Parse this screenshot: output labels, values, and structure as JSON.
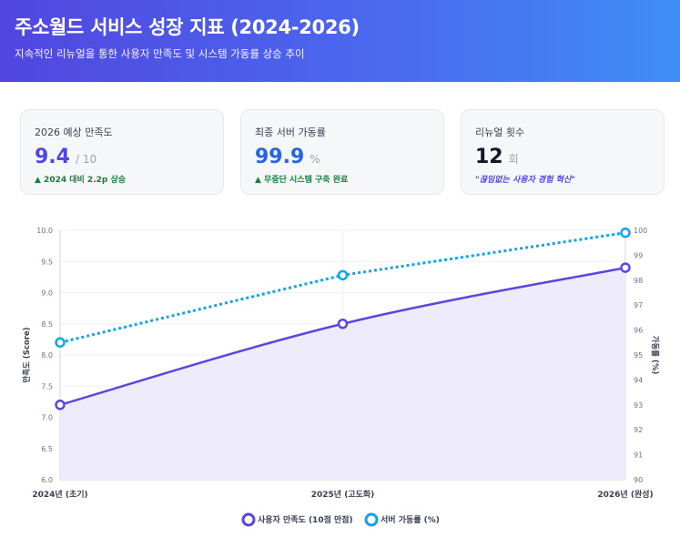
{
  "header": {
    "title": "주소월드 서비스 성장 지표 (2024-2026)",
    "subtitle": "지속적인 리뉴얼을 통한 사용자 만족도 및 시스템 가동률 상승 추이"
  },
  "cards": [
    {
      "label": "2026 예상 만족도",
      "value": "9.4",
      "unit": "/ 10",
      "note": "▲ 2024 대비 2.2p 상승"
    },
    {
      "label": "최종 서버 가동률",
      "value": "99.9",
      "unit": "%",
      "note": "▲ 무중단 시스템 구축 완료"
    },
    {
      "label": "리뉴얼 횟수",
      "value": "12",
      "unit": "회",
      "note": "\"끊임없는 사용자 경험 혁신\""
    }
  ],
  "colors": {
    "satisfaction": "#5b47e0",
    "availability": "#0ea5e9",
    "area_fill": "#eeecfb"
  },
  "chart_data": {
    "type": "line",
    "categories": [
      "2024년 (초기)",
      "2025년 (고도화)",
      "2026년 (완성)"
    ],
    "series": [
      {
        "name": "사용자 만족도 (10점 만점)",
        "values": [
          7.2,
          8.5,
          9.4
        ],
        "axis": "left",
        "style": "solid-area"
      },
      {
        "name": "서버 가동률 (%)",
        "values": [
          95.5,
          98.2,
          99.9
        ],
        "axis": "right",
        "style": "dotted"
      }
    ],
    "ylabel": "만족도 (Score)",
    "y2label": "가동률 (%)",
    "ylim": [
      6.0,
      10.0
    ],
    "y2lim": [
      90,
      100
    ],
    "yticks": [
      "6.0",
      "6.5",
      "7.0",
      "7.5",
      "8.0",
      "8.5",
      "9.0",
      "9.5",
      "10.0"
    ],
    "y2ticks": [
      "90",
      "91",
      "92",
      "93",
      "94",
      "95",
      "96",
      "97",
      "98",
      "99",
      "100"
    ],
    "grid": true,
    "legend": "bottom-center"
  }
}
